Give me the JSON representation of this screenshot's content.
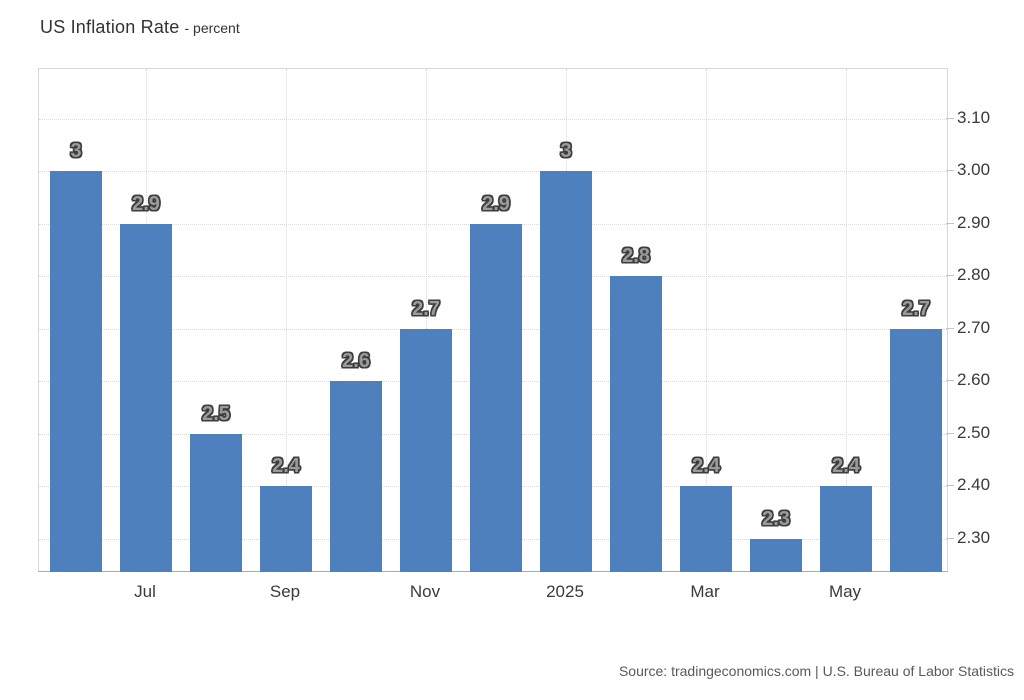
{
  "title": {
    "main": "US Inflation Rate",
    "subtitle": "- percent"
  },
  "source": "Source: tradingeconomics.com | U.S. Bureau of Labor Statistics",
  "colors": {
    "bar": "#4e80bd",
    "grid": "#d9d9d9",
    "plot_border": "#d6d8da",
    "axis_line": "#a9abad",
    "axis_text": "#3a3a3a",
    "value_label_fill": "#9b9b9b",
    "value_label_outline": "#3d3d3d",
    "source_text": "#58595b"
  },
  "chart_data": {
    "type": "bar",
    "title": "US Inflation Rate",
    "ylabel": "percent",
    "values": [
      3,
      2.9,
      2.5,
      2.4,
      2.6,
      2.7,
      2.9,
      3,
      2.8,
      2.4,
      2.3,
      2.4,
      2.7
    ],
    "bar_labels": [
      "3",
      "2.9",
      "2.5",
      "2.4",
      "2.6",
      "2.7",
      "2.9",
      "3",
      "2.8",
      "2.4",
      "2.3",
      "2.4",
      "2.7"
    ],
    "x_ticks": [
      {
        "label": "Jul",
        "bar_index": 1
      },
      {
        "label": "Sep",
        "bar_index": 3
      },
      {
        "label": "Nov",
        "bar_index": 5
      },
      {
        "label": "2025",
        "bar_index": 7
      },
      {
        "label": "Mar",
        "bar_index": 9
      },
      {
        "label": "May",
        "bar_index": 11
      }
    ],
    "y_ticks": [
      "3.10",
      "3.00",
      "2.90",
      "2.80",
      "2.70",
      "2.60",
      "2.50",
      "2.40",
      "2.30"
    ],
    "ylim": [
      2.235,
      3.195
    ],
    "grid": "dotted",
    "legend": "none"
  }
}
